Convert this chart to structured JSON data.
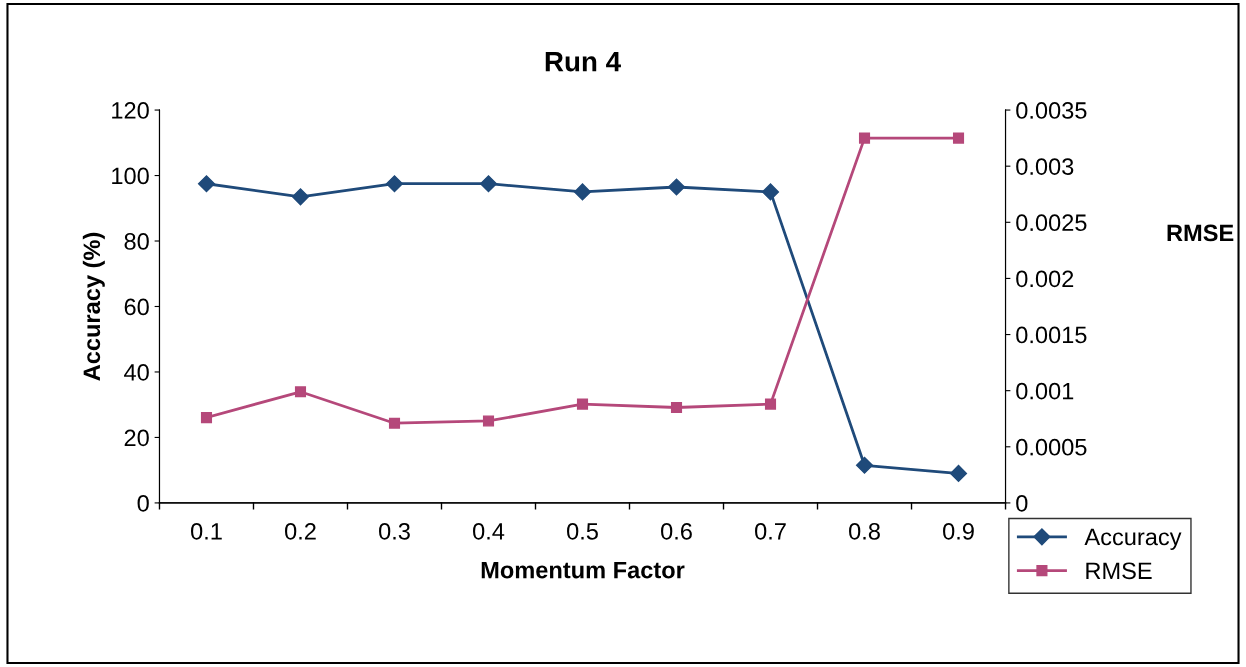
{
  "chart_data": {
    "type": "line",
    "title": "Run 4",
    "xlabel": "Momentum Factor",
    "ylabel": "Accuracy (%)",
    "y2label": "RMSE",
    "categories": [
      "0.1",
      "0.2",
      "0.3",
      "0.4",
      "0.5",
      "0.6",
      "0.7",
      "0.8",
      "0.9"
    ],
    "series": [
      {
        "name": "Accuracy",
        "color": "#1f4a7a",
        "marker": "diamond",
        "values": [
          97.5,
          93.5,
          97.5,
          97.5,
          95,
          96.5,
          95,
          11.5,
          9
        ]
      },
      {
        "name": "RMSE",
        "color": "#b5487a",
        "marker": "square",
        "axis": "y2",
        "values": [
          0.00076,
          0.00099,
          0.00071,
          0.00073,
          0.00088,
          0.00085,
          0.00088,
          0.00325,
          0.00325
        ]
      }
    ],
    "ylim": [
      0,
      120
    ],
    "yticks": [
      0,
      20,
      40,
      60,
      80,
      100,
      120
    ],
    "y2lim": [
      0,
      0.0035
    ],
    "y2ticks": [
      0,
      0.0005,
      0.001,
      0.0015,
      0.002,
      0.0025,
      0.003,
      0.0035
    ],
    "grid": false,
    "legend": "bottom right",
    "line_style": "solid"
  }
}
